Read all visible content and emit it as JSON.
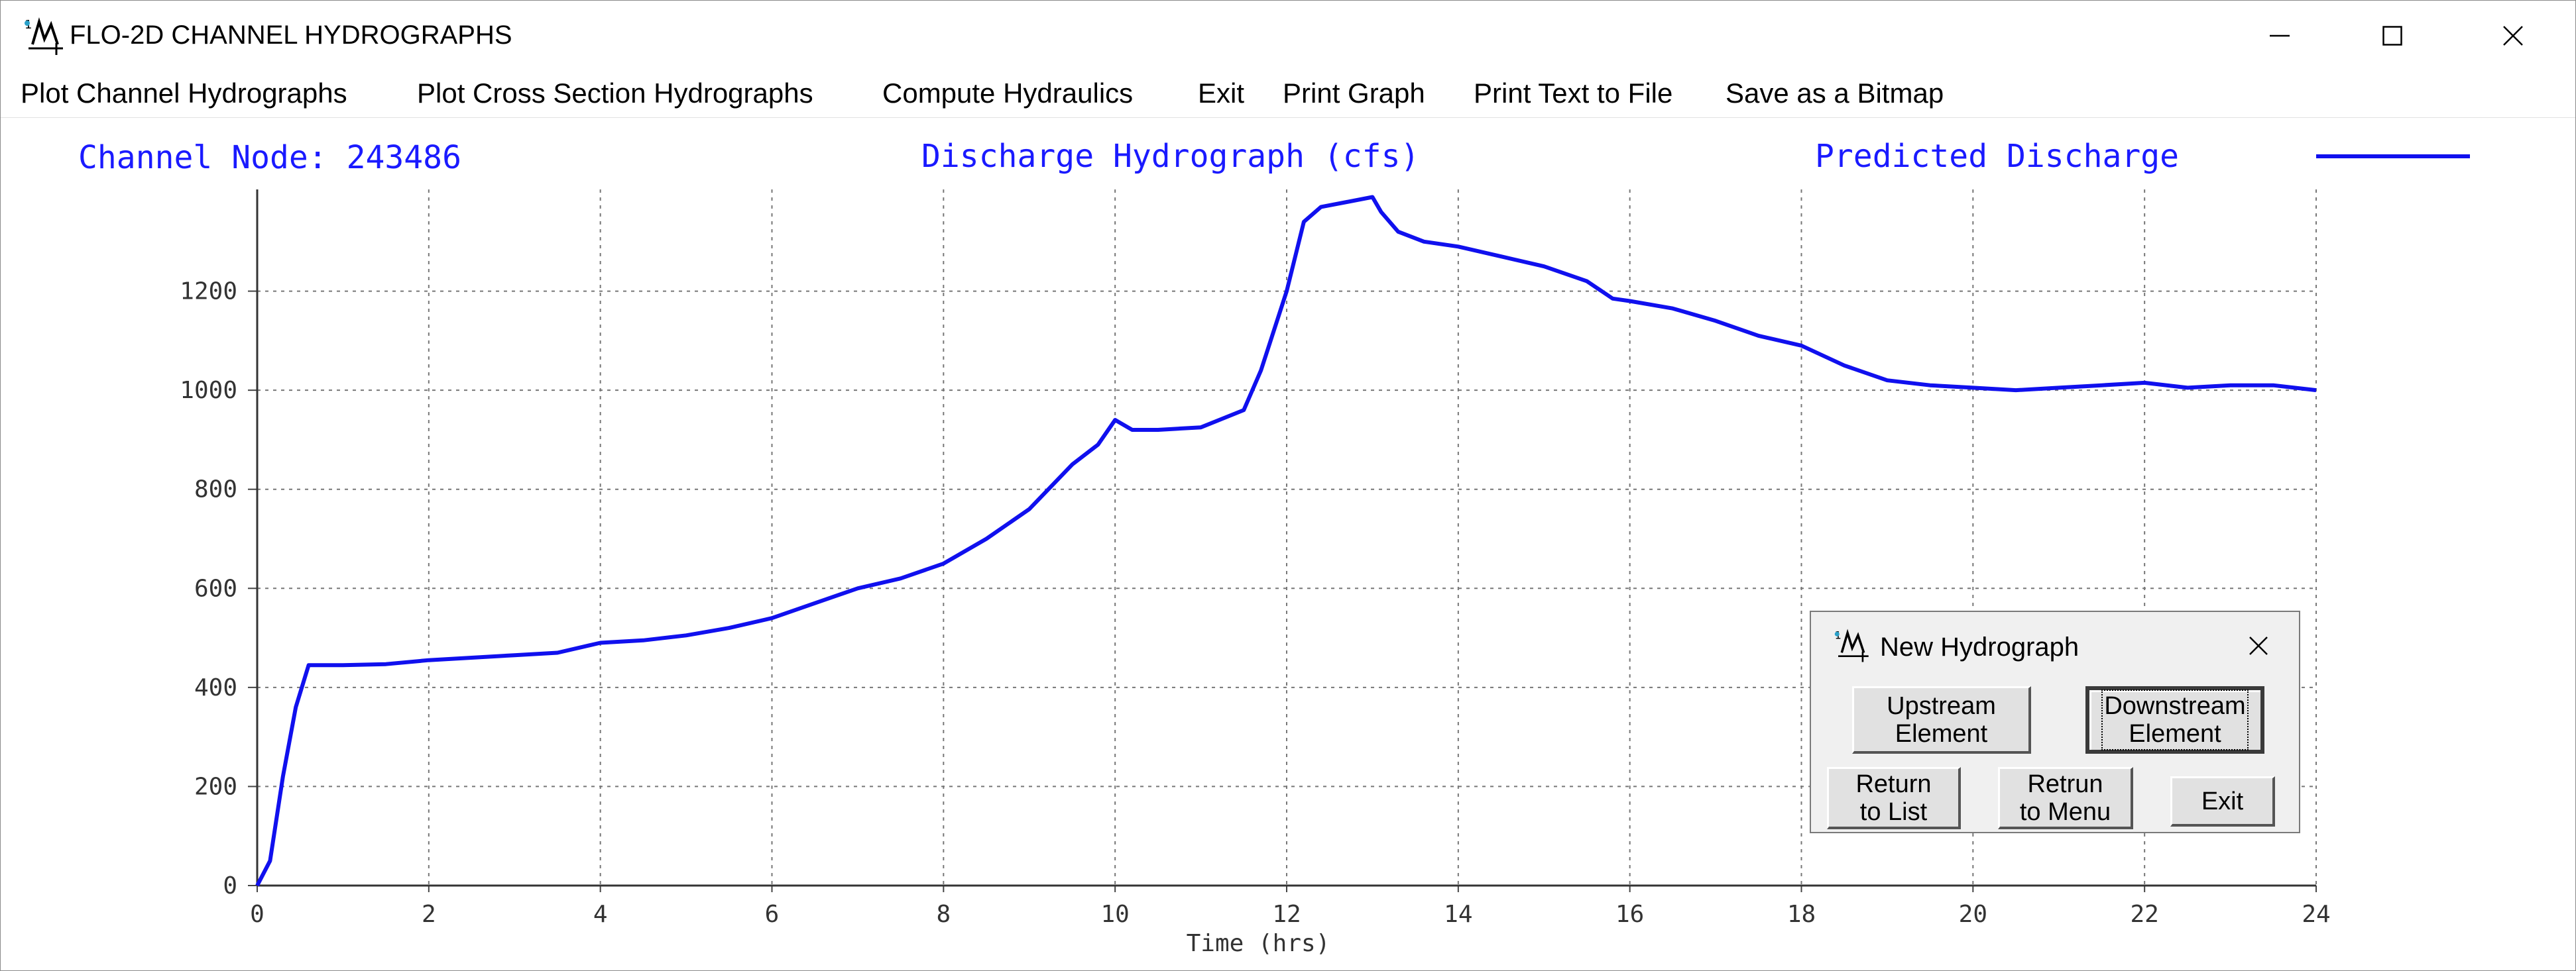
{
  "window": {
    "title": "FLO-2D CHANNEL HYDROGRAPHS",
    "icon": "flo2d-app-icon",
    "controls": [
      "minimize-icon",
      "maximize-icon",
      "close-icon"
    ]
  },
  "menu": [
    "Plot Channel Hydrographs",
    "Plot Cross Section Hydrographs",
    "Compute Hydraulics",
    "Exit",
    "Print Graph",
    "Print Text to File",
    "Save as a Bitmap"
  ],
  "chart_header": {
    "node_label": "Channel Node:  243486",
    "title": "Discharge Hydrograph (cfs)",
    "legend": "Predicted Discharge"
  },
  "chart_data": {
    "type": "line",
    "title": "Discharge Hydrograph (cfs)",
    "xlabel": "Time (hrs)",
    "ylabel": "",
    "xlim": [
      0,
      24
    ],
    "ylim": [
      0,
      1400
    ],
    "xticks": [
      0,
      2,
      4,
      6,
      8,
      10,
      12,
      14,
      16,
      18,
      20,
      22,
      24
    ],
    "yticks": [
      0,
      200,
      400,
      600,
      800,
      1000,
      1200
    ],
    "grid": true,
    "legend_position": "top-right",
    "series": [
      {
        "name": "Predicted Discharge",
        "color": "#1010ee",
        "x": [
          0,
          0.15,
          0.3,
          0.45,
          0.6,
          1.0,
          1.5,
          2.0,
          3.0,
          3.5,
          4.0,
          4.5,
          5.0,
          5.5,
          6.0,
          6.5,
          7.0,
          7.5,
          8.0,
          8.5,
          9.0,
          9.5,
          9.8,
          10.0,
          10.2,
          10.5,
          11.0,
          11.5,
          11.7,
          12.0,
          12.2,
          12.4,
          12.7,
          13.0,
          13.1,
          13.3,
          13.6,
          14.0,
          14.5,
          15.0,
          15.5,
          15.8,
          16.0,
          16.5,
          17.0,
          17.5,
          18.0,
          18.5,
          19.0,
          19.5,
          20.0,
          20.5,
          21.0,
          21.5,
          22.0,
          22.5,
          23.0,
          23.5,
          24.0
        ],
        "y": [
          0,
          50,
          220,
          360,
          445,
          445,
          447,
          455,
          465,
          470,
          490,
          495,
          505,
          520,
          540,
          570,
          600,
          620,
          650,
          700,
          760,
          850,
          890,
          940,
          920,
          920,
          925,
          960,
          1040,
          1200,
          1340,
          1370,
          1380,
          1390,
          1360,
          1320,
          1300,
          1290,
          1270,
          1250,
          1220,
          1185,
          1180,
          1165,
          1140,
          1110,
          1090,
          1050,
          1020,
          1010,
          1005,
          1000,
          1005,
          1010,
          1015,
          1005,
          1010,
          1010,
          1000
        ]
      }
    ]
  },
  "dialog": {
    "title": "New Hydrograph",
    "icon": "flo2d-app-icon",
    "close": "close-icon",
    "buttons": {
      "upstream": "Upstream\nElement",
      "downstream": "Downstream\nElement",
      "return_list": "Return\nto List",
      "return_menu": "Retrun\nto Menu",
      "exit": "Exit"
    }
  }
}
